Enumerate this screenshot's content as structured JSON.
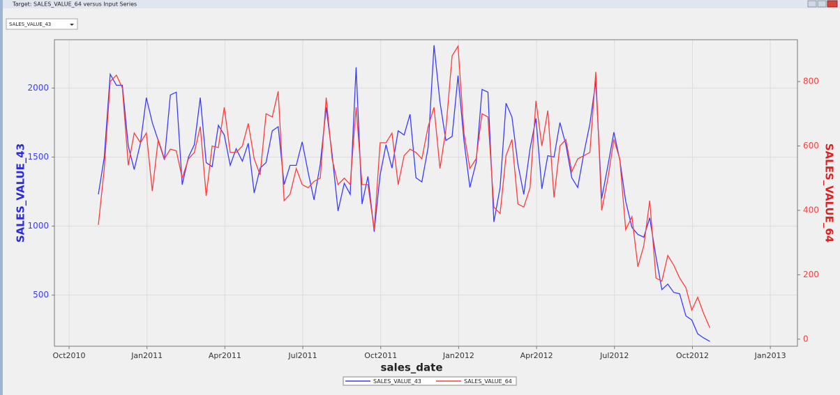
{
  "window": {
    "title": "Target: SALES_VALUE_64 versus Input Series"
  },
  "selector": {
    "value": "SALES_VALUE_43"
  },
  "chart_data": {
    "type": "line",
    "x_label": "sales_date",
    "y_label": "SALES_VALUE_43",
    "y2_label": "SALES_VALUE_64",
    "x": [
      2010.844,
      2010.863,
      2010.882,
      2010.902,
      2010.921,
      2010.94,
      2010.959,
      2010.979,
      2010.998,
      2011.017,
      2011.036,
      2011.056,
      2011.075,
      2011.094,
      2011.113,
      2011.133,
      2011.152,
      2011.171,
      2011.19,
      2011.209,
      2011.229,
      2011.248,
      2011.267,
      2011.286,
      2011.306,
      2011.325,
      2011.344,
      2011.363,
      2011.382,
      2011.402,
      2011.421,
      2011.44,
      2011.459,
      2011.479,
      2011.498,
      2011.517,
      2011.536,
      2011.556,
      2011.575,
      2011.594,
      2011.613,
      2011.633,
      2011.652,
      2011.671,
      2011.69,
      2011.709,
      2011.729,
      2011.748,
      2011.767,
      2011.786,
      2011.806,
      2011.825,
      2011.844,
      2011.863,
      2011.882,
      2011.902,
      2011.921,
      2011.94,
      2011.959,
      2011.979,
      2011.998,
      2012.017,
      2012.036,
      2012.056,
      2012.075,
      2012.094,
      2012.113,
      2012.133,
      2012.152,
      2012.171,
      2012.19,
      2012.209,
      2012.229,
      2012.248,
      2012.267,
      2012.286,
      2012.306,
      2012.325,
      2012.344,
      2012.363,
      2012.382,
      2012.402,
      2012.421,
      2012.44,
      2012.459,
      2012.479,
      2012.498,
      2012.517,
      2012.536,
      2012.556,
      2012.575,
      2012.594,
      2012.613,
      2012.633,
      2012.652,
      2012.671,
      2012.69,
      2012.709,
      2012.729,
      2012.748,
      2012.767,
      2012.786,
      2012.806
    ],
    "xlim": [
      2010.703,
      2013.087
    ],
    "xticks": [
      {
        "value": 2010.75,
        "label": "Oct2010"
      },
      {
        "value": 2011.0,
        "label": "Jan2011"
      },
      {
        "value": 2011.25,
        "label": "Apr2011"
      },
      {
        "value": 2011.5,
        "label": "Jul2011"
      },
      {
        "value": 2011.75,
        "label": "Oct2011"
      },
      {
        "value": 2012.0,
        "label": "Jan2012"
      },
      {
        "value": 2012.25,
        "label": "Apr2012"
      },
      {
        "value": 2012.5,
        "label": "Jul2012"
      },
      {
        "value": 2012.75,
        "label": "Oct2012"
      },
      {
        "value": 2013.0,
        "label": "Jan2013"
      }
    ],
    "ylim": [
      130,
      2350
    ],
    "yticks": [
      500,
      1000,
      1500,
      2000
    ],
    "y2lim": [
      -22,
      930
    ],
    "y2ticks": [
      0,
      200,
      400,
      600,
      800
    ],
    "grid": true,
    "legend": "bottom",
    "series": [
      {
        "name": "SALES_VALUE_43",
        "color": "#3a3aff",
        "values": [
          1230,
          1500,
          2100,
          2020,
          2020,
          1580,
          1410,
          1600,
          1930,
          1750,
          1620,
          1480,
          1950,
          1970,
          1300,
          1500,
          1590,
          1930,
          1460,
          1430,
          1730,
          1660,
          1440,
          1560,
          1470,
          1600,
          1240,
          1420,
          1460,
          1690,
          1720,
          1300,
          1440,
          1440,
          1610,
          1390,
          1190,
          1450,
          1860,
          1520,
          1110,
          1310,
          1230,
          2150,
          1160,
          1360,
          960,
          1370,
          1590,
          1420,
          1690,
          1660,
          1810,
          1350,
          1320,
          1570,
          2310,
          1900,
          1620,
          1650,
          2090,
          1620,
          1280,
          1460,
          1990,
          1970,
          1030,
          1280,
          1890,
          1790,
          1450,
          1230,
          1560,
          1780,
          1270,
          1510,
          1500,
          1750,
          1590,
          1350,
          1280,
          1530,
          1740,
          2050,
          1200,
          1440,
          1680,
          1480,
          1180,
          990,
          940,
          920,
          1060,
          780,
          540,
          580,
          520,
          510,
          350,
          320,
          220,
          190,
          165
        ]
      },
      {
        "name": "SALES_VALUE_64",
        "color": "#ff3b3b",
        "axis": "y2",
        "values": [
          355,
          530,
          800,
          820,
          780,
          540,
          640,
          610,
          640,
          460,
          620,
          560,
          590,
          585,
          500,
          560,
          580,
          660,
          445,
          600,
          595,
          720,
          580,
          580,
          600,
          670,
          560,
          510,
          700,
          690,
          770,
          430,
          450,
          530,
          480,
          470,
          490,
          500,
          750,
          560,
          480,
          500,
          480,
          720,
          480,
          480,
          340,
          610,
          610,
          640,
          480,
          570,
          590,
          580,
          560,
          660,
          720,
          530,
          650,
          880,
          910,
          640,
          530,
          560,
          700,
          690,
          410,
          390,
          570,
          620,
          420,
          410,
          470,
          740,
          600,
          710,
          440,
          600,
          620,
          520,
          560,
          570,
          580,
          830,
          400,
          500,
          620,
          560,
          340,
          380,
          225,
          290,
          430,
          190,
          180,
          260,
          230,
          190,
          160,
          90,
          130,
          80,
          35
        ]
      }
    ]
  }
}
